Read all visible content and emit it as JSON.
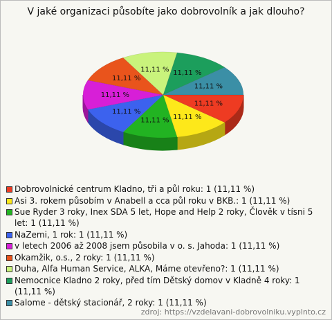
{
  "chart_data": {
    "type": "pie",
    "title": "V jaké organizaci působíte jako dobrovolník a jak dlouho?",
    "categories": [
      "Dobrovolnické centrum Kladno, tři a půl roku: 1 (11,11 %)",
      "Asi 3. rokem působím v Anabell a cca půl roku v BKB.: 1 (11,11 %)",
      "Sue Ryder 3 roky, Inex SDA 5 let, Hope and Help 2 roky, Člověk v tísni 5 let: 1 (11,11 %)",
      "NaZemi, 1 rok: 1 (11,11 %)",
      "v letech 2006 až 2008 jsem působila v o. s. Jahoda: 1 (11,11 %)",
      "Okamžik, o.s., 2 roky: 1 (11,11 %)",
      "Duha, Alfa Human Service, ALKA, Máme otevřeno?: 1 (11,11 %)",
      "Nemocnice Kladno 2 roky, před tím Dětský domov v Kladně 4 roky: 1 (11,11 %)",
      "Salome - dětský stacionář, 2 roky: 1 (11,11 %)"
    ],
    "values": [
      11.11,
      11.11,
      11.11,
      11.11,
      11.11,
      11.11,
      11.11,
      11.11,
      11.11
    ],
    "value_labels": [
      "11,11 %",
      "11,11 %",
      "11,11 %",
      "11,11 %",
      "11,11 %",
      "11,11 %",
      "11,11 %",
      "11,11 %",
      "11,11 %"
    ],
    "colors": [
      "#ee3b22",
      "#fde81a",
      "#22b322",
      "#3c62ee",
      "#d71fd7",
      "#e9541c",
      "#c9f37c",
      "#1c9e5c",
      "#3b8fa6"
    ],
    "source": "zdroj: https://vzdelavani-dobrovolniku.vyplnto.cz"
  }
}
